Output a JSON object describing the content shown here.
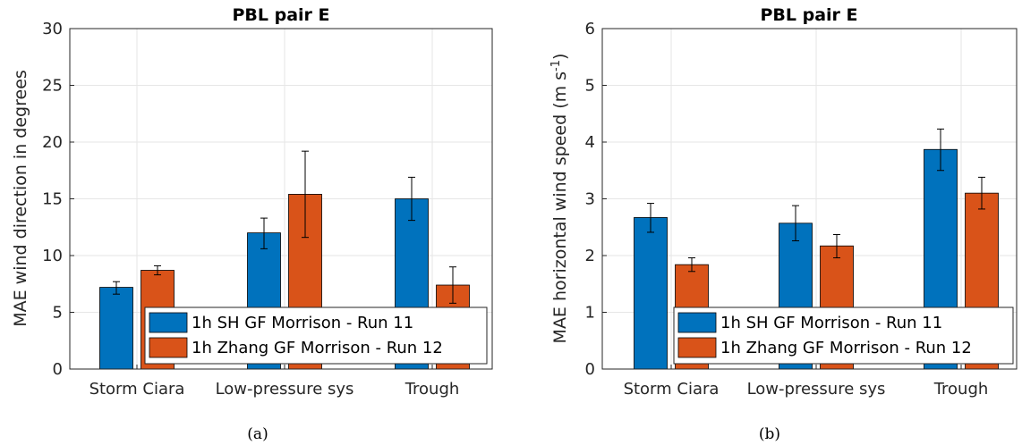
{
  "legend": {
    "series": [
      {
        "label": "1h SH GF Morrison - Run 11",
        "color": "#0072BD"
      },
      {
        "label": "1h Zhang GF Morrison - Run 12",
        "color": "#D95319"
      }
    ]
  },
  "chart_data": [
    {
      "type": "bar",
      "title": "PBL pair E",
      "ylabel_main": "MAE wind direction in degrees",
      "ylabel_sup": "",
      "ylabel_tail": "",
      "xlabel": "",
      "caption": "(a)",
      "categories": [
        "Storm Ciara",
        "Low-pressure sys",
        "Trough"
      ],
      "ylim": [
        0,
        30
      ],
      "yticks": [
        0,
        5,
        10,
        15,
        20,
        25,
        30
      ],
      "grid": true,
      "legend_position": "bottom-right",
      "series": [
        {
          "name": "1h SH GF Morrison - Run 11",
          "color": "#0072BD",
          "values": [
            7.2,
            12.0,
            15.0
          ],
          "err_low": [
            6.6,
            10.6,
            13.1
          ],
          "err_high": [
            7.7,
            13.3,
            16.9
          ]
        },
        {
          "name": "1h Zhang GF Morrison - Run 12",
          "color": "#D95319",
          "values": [
            8.7,
            15.4,
            7.4
          ],
          "err_low": [
            8.3,
            11.6,
            5.8
          ],
          "err_high": [
            9.1,
            19.2,
            9.0
          ]
        }
      ]
    },
    {
      "type": "bar",
      "title": "PBL pair E",
      "ylabel_main": "MAE horizontal wind speed (m s",
      "ylabel_sup": "-1",
      "ylabel_tail": ")",
      "xlabel": "",
      "caption": "(b)",
      "categories": [
        "Storm Ciara",
        "Low-pressure sys",
        "Trough"
      ],
      "ylim": [
        0,
        6
      ],
      "yticks": [
        0,
        1,
        2,
        3,
        4,
        5,
        6
      ],
      "grid": true,
      "legend_position": "bottom-right",
      "series": [
        {
          "name": "1h SH GF Morrison - Run 11",
          "color": "#0072BD",
          "values": [
            2.67,
            2.57,
            3.87
          ],
          "err_low": [
            2.41,
            2.26,
            3.5
          ],
          "err_high": [
            2.92,
            2.88,
            4.23
          ]
        },
        {
          "name": "1h Zhang GF Morrison - Run 12",
          "color": "#D95319",
          "values": [
            1.84,
            2.17,
            3.1
          ],
          "err_low": [
            1.72,
            1.96,
            2.82
          ],
          "err_high": [
            1.96,
            2.37,
            3.38
          ]
        }
      ]
    }
  ]
}
